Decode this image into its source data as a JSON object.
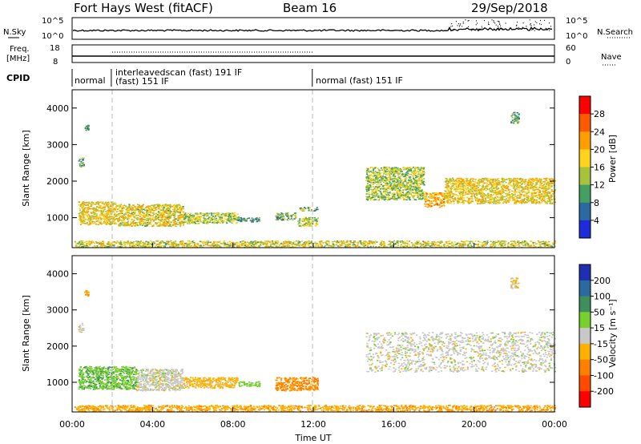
{
  "header": {
    "station": "Fort Hays West (fitACF)",
    "beam": "Beam 16",
    "date": "29/Sep/2018"
  },
  "noise_panel": {
    "left_label": "N.Sky",
    "left_ticks": [
      "10^5",
      "10^0"
    ],
    "right_label": "N.Search",
    "right_ticks": [
      "10^5",
      "10^0"
    ]
  },
  "freq_panel": {
    "left_label_line1": "Freq.",
    "left_label_line2": "[MHz]",
    "left_ticks": [
      "18",
      "8"
    ],
    "right_label": "Nave",
    "right_ticks": [
      "60",
      "0"
    ]
  },
  "cpid_panel": {
    "label": "CPID",
    "segments": [
      {
        "start_hour": 0.0,
        "end_hour": 1.95,
        "name": "normal",
        "name2": ""
      },
      {
        "start_hour": 1.95,
        "end_hour": 11.95,
        "name": "interleavedscan (fast) 191 IF",
        "name2": "(fast) 151 IF"
      },
      {
        "start_hour": 11.95,
        "end_hour": 24.0,
        "name": "normal (fast) 151 IF",
        "name2": ""
      }
    ]
  },
  "power_colorbar": {
    "title": "Power [dB]",
    "ticks": [
      "28",
      "24",
      "20",
      "16",
      "12",
      "8",
      "4"
    ],
    "colors": [
      "#ff0000",
      "#ff5a00",
      "#ff9e00",
      "#ffd21e",
      "#a7c33d",
      "#43a062",
      "#2b6aa1",
      "#1d2bd8"
    ]
  },
  "velocity_colorbar": {
    "title": "Velocity [m s⁻¹]",
    "ticks": [
      "200",
      "100",
      "50",
      "15",
      "-15",
      "-50",
      "-100",
      "-200"
    ],
    "colors": [
      "#1f2fb0",
      "#2b6aa1",
      "#3f8f5c",
      "#78d02c",
      "#c8c8c8",
      "#ffb000",
      "#ff8000",
      "#ff4a00",
      "#ff0000"
    ]
  },
  "chart_data": [
    {
      "type": "heatmap",
      "title": "Power [dB]",
      "xlabel": "",
      "ylabel": "Slant Range [km]",
      "xlim_hours": [
        0,
        24
      ],
      "ylim_km": [
        180,
        4500
      ],
      "yticks": [
        1000,
        2000,
        3000,
        4000
      ],
      "xticks": [
        "00:00",
        "04:00",
        "08:00",
        "12:00",
        "16:00",
        "20:00",
        "00:00"
      ],
      "echo_regions": [
        {
          "t_start": 0.3,
          "t_end": 0.55,
          "r_low": 2400,
          "r_high": 2650,
          "power": 10
        },
        {
          "t_start": 0.6,
          "t_end": 0.8,
          "r_low": 3400,
          "r_high": 3550,
          "power": 8
        },
        {
          "t_start": 0.3,
          "t_end": 2.2,
          "r_low": 820,
          "r_high": 1450,
          "power": 18
        },
        {
          "t_start": 2.2,
          "t_end": 5.5,
          "r_low": 780,
          "r_high": 1380,
          "power": 17
        },
        {
          "t_start": 5.5,
          "t_end": 8.2,
          "r_low": 850,
          "r_high": 1150,
          "power": 14
        },
        {
          "t_start": 8.2,
          "t_end": 9.3,
          "r_low": 900,
          "r_high": 1030,
          "power": 10
        },
        {
          "t_start": 10.1,
          "t_end": 11.1,
          "r_low": 950,
          "r_high": 1150,
          "power": 12
        },
        {
          "t_start": 11.2,
          "t_end": 12.2,
          "r_low": 780,
          "r_high": 1030,
          "power": 14
        },
        {
          "t_start": 11.3,
          "t_end": 12.2,
          "r_low": 1200,
          "r_high": 1300,
          "power": 12
        },
        {
          "t_start": 0.1,
          "t_end": 24.0,
          "r_low": 200,
          "r_high": 380,
          "power": 16
        },
        {
          "t_start": 14.6,
          "t_end": 17.5,
          "r_low": 1500,
          "r_high": 2400,
          "power": 14
        },
        {
          "t_start": 17.5,
          "t_end": 18.5,
          "r_low": 1300,
          "r_high": 1700,
          "power": 20
        },
        {
          "t_start": 18.5,
          "t_end": 24.0,
          "r_low": 1400,
          "r_high": 2100,
          "power": 18
        },
        {
          "t_start": 21.8,
          "t_end": 22.2,
          "r_low": 3600,
          "r_high": 3900,
          "power": 10
        }
      ]
    },
    {
      "type": "heatmap",
      "title": "Velocity [m s⁻¹]",
      "xlabel": "Time UT",
      "ylabel": "Slant Range [km]",
      "xlim_hours": [
        0,
        24
      ],
      "ylim_km": [
        180,
        4500
      ],
      "yticks": [
        1000,
        2000,
        3000,
        4000
      ],
      "xticks": [
        "00:00",
        "04:00",
        "08:00",
        "12:00",
        "16:00",
        "20:00",
        "00:00"
      ],
      "echo_regions": [
        {
          "t_start": 0.3,
          "t_end": 0.55,
          "r_low": 2400,
          "r_high": 2650,
          "velocity": 0
        },
        {
          "t_start": 0.6,
          "t_end": 0.8,
          "r_low": 3400,
          "r_high": 3550,
          "velocity": -40
        },
        {
          "t_start": 0.3,
          "t_end": 3.2,
          "r_low": 820,
          "r_high": 1450,
          "velocity": 40
        },
        {
          "t_start": 3.2,
          "t_end": 5.5,
          "r_low": 780,
          "r_high": 1380,
          "velocity": 0
        },
        {
          "t_start": 5.5,
          "t_end": 8.2,
          "r_low": 850,
          "r_high": 1150,
          "velocity": -30
        },
        {
          "t_start": 8.2,
          "t_end": 9.3,
          "r_low": 900,
          "r_high": 1030,
          "velocity": 30
        },
        {
          "t_start": 10.1,
          "t_end": 12.2,
          "r_low": 780,
          "r_high": 1150,
          "velocity": -60
        },
        {
          "t_start": 0.1,
          "t_end": 24.0,
          "r_low": 200,
          "r_high": 380,
          "velocity": -40
        },
        {
          "t_start": 14.6,
          "t_end": 24.0,
          "r_low": 1300,
          "r_high": 2400,
          "velocity": 0
        },
        {
          "t_start": 21.8,
          "t_end": 22.2,
          "r_low": 3600,
          "r_high": 3900,
          "velocity": -20
        }
      ]
    }
  ],
  "x_axis": {
    "label": "Time UT",
    "ticks": [
      "00:00",
      "04:00",
      "08:00",
      "12:00",
      "16:00",
      "20:00",
      "00:00"
    ]
  }
}
